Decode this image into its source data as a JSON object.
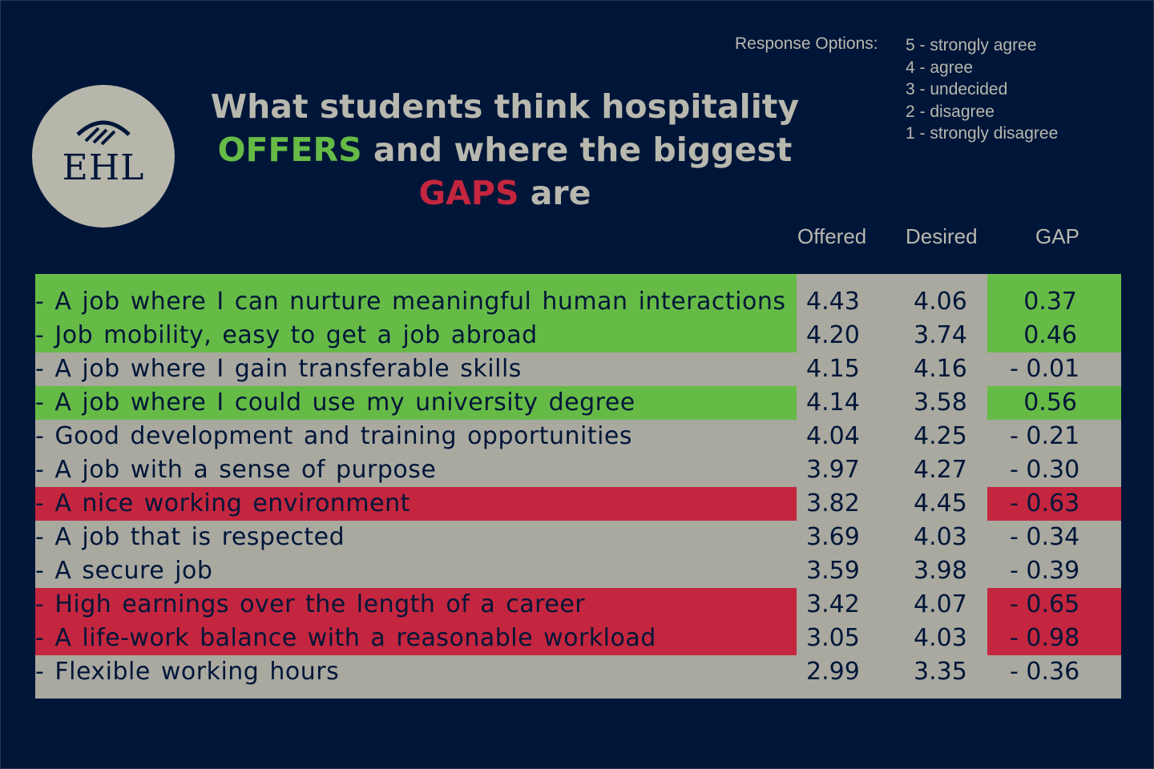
{
  "logo": {
    "text": "EHL",
    "icon": "ehl-arches-icon"
  },
  "title": {
    "line1": "What students think hospitality",
    "offers_word": "OFFERS",
    "line2_rest": "and where the biggest",
    "gaps_word": "GAPS",
    "line3_rest": "are"
  },
  "response_options": {
    "label": "Response Options:",
    "items": [
      "5 - strongly agree",
      "4 - agree",
      "3 - undecided",
      "2 - disagree",
      "1 - strongly disagree"
    ]
  },
  "colors": {
    "background": "#001639",
    "green": "#66bb46",
    "red": "#c3263e",
    "gray": "#a9a9a0",
    "text_light": "#b8b8ae"
  },
  "chart_data": {
    "type": "table",
    "columns": [
      "Offered",
      "Desired",
      "GAP"
    ],
    "rows": [
      {
        "label": "- A job where I can nurture meaningful human interactions",
        "offered": "4.43",
        "desired": "4.06",
        "gap": "0.37",
        "highlight": "green"
      },
      {
        "label": "- Job mobility, easy to get a job abroad",
        "offered": "4.20",
        "desired": "3.74",
        "gap": "0.46",
        "highlight": "green"
      },
      {
        "label": "- A job where I gain transferable skills",
        "offered": "4.15",
        "desired": "4.16",
        "gap": "- 0.01",
        "highlight": "none"
      },
      {
        "label": "- A job where I could use my university degree",
        "offered": "4.14",
        "desired": "3.58",
        "gap": "0.56",
        "highlight": "green"
      },
      {
        "label": "- Good development and training opportunities",
        "offered": "4.04",
        "desired": "4.25",
        "gap": "- 0.21",
        "highlight": "none"
      },
      {
        "label": "- A job with a sense of purpose",
        "offered": "3.97",
        "desired": "4.27",
        "gap": "- 0.30",
        "highlight": "none"
      },
      {
        "label": "- A nice working environment",
        "offered": "3.82",
        "desired": "4.45",
        "gap": "- 0.63",
        "highlight": "red"
      },
      {
        "label": "- A job that is respected",
        "offered": "3.69",
        "desired": "4.03",
        "gap": "- 0.34",
        "highlight": "none"
      },
      {
        "label": "- A secure job",
        "offered": "3.59",
        "desired": "3.98",
        "gap": "- 0.39",
        "highlight": "none"
      },
      {
        "label": "- High earnings over the length of a career",
        "offered": "3.42",
        "desired": "4.07",
        "gap": "- 0.65",
        "highlight": "red"
      },
      {
        "label": "- A life-work balance with a reasonable workload",
        "offered": "3.05",
        "desired": "4.03",
        "gap": "- 0.98",
        "highlight": "red"
      },
      {
        "label": "- Flexible working hours",
        "offered": "2.99",
        "desired": "3.35",
        "gap": "- 0.36",
        "highlight": "none"
      }
    ]
  }
}
